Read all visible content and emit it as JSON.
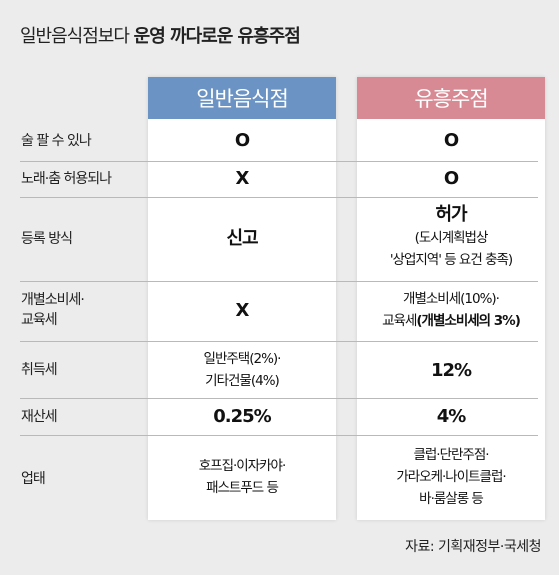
{
  "title": {
    "normal": "일반음식점보다 ",
    "bold": "운영 까다로운 유흥주점"
  },
  "columns": {
    "a": "일반음식점",
    "b": "유흥주점"
  },
  "colors": {
    "header_a": "#6b93c4",
    "header_b": "#d88a94"
  },
  "rows": {
    "alcohol": {
      "label": "술 팔 수 있나",
      "a": "O",
      "b": "O"
    },
    "singing": {
      "label": "노래·춤 허용되나",
      "a": "X",
      "b": "O"
    },
    "registration": {
      "label": "등록 방식",
      "a": "신고",
      "b_title": "허가",
      "b_line1": "(도시계획법상",
      "b_line2": "'상업지역' 등 요건 충족)"
    },
    "tax": {
      "label_line1": "개별소비세·",
      "label_line2": "교육세",
      "a": "X",
      "b_line1": "개별소비세(10%)·",
      "b_line2_prefix": "교육세",
      "b_line2_bold": "(개별소비세의 3%)"
    },
    "acquisition": {
      "label": "취득세",
      "a_line1": "일반주택(2%)·",
      "a_line2": "기타건물(4%)",
      "b": "12%"
    },
    "property": {
      "label": "재산세",
      "a": "0.25%",
      "b": "4%"
    },
    "business": {
      "label": "업태",
      "a_line1": "호프집·이자카야·",
      "a_line2": "패스트푸드 등",
      "b_line1": "클럽·단란주점·",
      "b_line2": "가라오케·나이트클럽·",
      "b_line3": "바·룸살롱 등"
    }
  },
  "source": "자료: 기획재정부·국세청"
}
